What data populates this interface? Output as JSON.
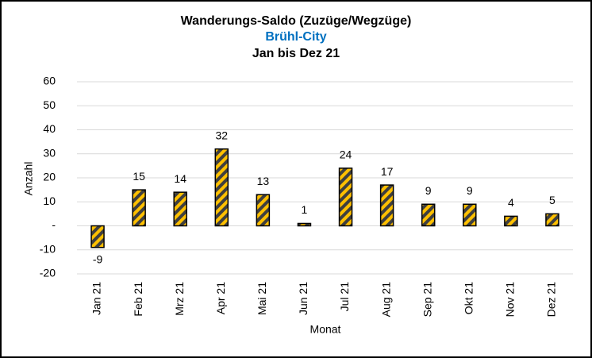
{
  "chart_data": {
    "type": "bar",
    "title": "Wanderungs-Saldo (Zuzüge/Wegzüge)",
    "subtitle": "Brühl-City",
    "period": "Jan bis Dez 21",
    "x_label": "Monat",
    "y_label": "Anzahl",
    "categories": [
      "Jan 21",
      "Feb 21",
      "Mrz 21",
      "Apr 21",
      "Mai 21",
      "Jun 21",
      "Jul 21",
      "Aug 21",
      "Sep 21",
      "Okt 21",
      "Nov 21",
      "Dez 21"
    ],
    "values": [
      -9,
      15,
      14,
      32,
      13,
      1,
      24,
      17,
      9,
      9,
      4,
      5
    ],
    "color": "#ffc000",
    "hatch_color": "#3f3f3f",
    "subtitle_color": "#0070c0",
    "ylim": [
      -20,
      60
    ],
    "yticks": [
      -20,
      -10,
      {
        "value": 0,
        "label": "-"
      },
      10,
      20,
      30,
      40,
      50,
      60
    ],
    "grid": true
  }
}
